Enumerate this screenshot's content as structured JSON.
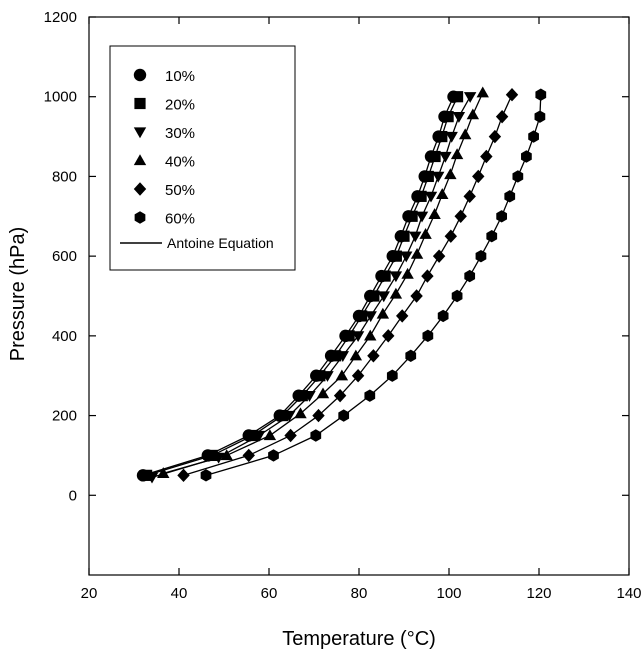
{
  "chart_data": {
    "type": "scatter",
    "title": "",
    "xlabel": "Temperature (°C)",
    "ylabel": "Pressure (hPa)",
    "xlim": [
      20,
      140
    ],
    "ylim": [
      -200,
      1200
    ],
    "xticks": [
      "20",
      "40",
      "60",
      "80",
      "100",
      "120",
      "140"
    ],
    "yticks": [
      "0",
      "200",
      "400",
      "600",
      "800",
      "1000",
      "1200"
    ],
    "grid": false,
    "legend_position": "top-left",
    "legend_line_label": "Antoine Equation",
    "series": [
      {
        "name": "10%",
        "marker": "circle",
        "points": [
          [
            32.0,
            50
          ],
          [
            46.4,
            100
          ],
          [
            55.5,
            150
          ],
          [
            62.4,
            200
          ],
          [
            66.6,
            250
          ],
          [
            70.5,
            300
          ],
          [
            73.8,
            350
          ],
          [
            77.0,
            400
          ],
          [
            80.0,
            450
          ],
          [
            82.5,
            500
          ],
          [
            85.0,
            550
          ],
          [
            87.5,
            600
          ],
          [
            89.3,
            650
          ],
          [
            91.0,
            700
          ],
          [
            93.0,
            750
          ],
          [
            94.6,
            800
          ],
          [
            96.0,
            850
          ],
          [
            97.7,
            900
          ],
          [
            99.0,
            950
          ],
          [
            101.0,
            1000
          ]
        ]
      },
      {
        "name": "20%",
        "marker": "square",
        "points": [
          [
            32.8,
            50
          ],
          [
            47.4,
            100
          ],
          [
            56.4,
            150
          ],
          [
            63.0,
            200
          ],
          [
            67.4,
            250
          ],
          [
            71.3,
            300
          ],
          [
            74.8,
            350
          ],
          [
            77.8,
            400
          ],
          [
            80.6,
            450
          ],
          [
            83.3,
            500
          ],
          [
            85.8,
            550
          ],
          [
            88.3,
            600
          ],
          [
            90.0,
            650
          ],
          [
            91.8,
            700
          ],
          [
            93.8,
            750
          ],
          [
            95.4,
            800
          ],
          [
            96.9,
            850
          ],
          [
            98.4,
            900
          ],
          [
            99.8,
            950
          ],
          [
            101.9,
            1000
          ]
        ]
      },
      {
        "name": "30%",
        "marker": "triangle-down",
        "points": [
          [
            34.0,
            45
          ],
          [
            48.8,
            95
          ],
          [
            57.8,
            150
          ],
          [
            64.5,
            200
          ],
          [
            69.0,
            250
          ],
          [
            73.0,
            300
          ],
          [
            76.4,
            350
          ],
          [
            79.8,
            400
          ],
          [
            82.6,
            450
          ],
          [
            85.5,
            500
          ],
          [
            88.2,
            550
          ],
          [
            90.5,
            600
          ],
          [
            92.5,
            650
          ],
          [
            94.0,
            700
          ],
          [
            96.0,
            750
          ],
          [
            97.6,
            800
          ],
          [
            99.2,
            850
          ],
          [
            100.6,
            900
          ],
          [
            102.2,
            950
          ],
          [
            104.7,
            1000
          ]
        ]
      },
      {
        "name": "40%",
        "marker": "triangle-up",
        "points": [
          [
            36.5,
            55
          ],
          [
            50.6,
            100
          ],
          [
            60.2,
            150
          ],
          [
            67.0,
            205
          ],
          [
            72.0,
            255
          ],
          [
            76.2,
            300
          ],
          [
            79.3,
            350
          ],
          [
            82.5,
            400
          ],
          [
            85.3,
            455
          ],
          [
            88.2,
            505
          ],
          [
            90.8,
            555
          ],
          [
            92.9,
            605
          ],
          [
            94.8,
            655
          ],
          [
            96.8,
            705
          ],
          [
            98.5,
            755
          ],
          [
            100.3,
            805
          ],
          [
            101.8,
            855
          ],
          [
            103.6,
            905
          ],
          [
            105.3,
            955
          ],
          [
            107.5,
            1010
          ]
        ]
      },
      {
        "name": "50%",
        "marker": "diamond",
        "points": [
          [
            41.0,
            50
          ],
          [
            55.5,
            100
          ],
          [
            64.8,
            150
          ],
          [
            71.0,
            200
          ],
          [
            75.8,
            250
          ],
          [
            79.8,
            300
          ],
          [
            83.2,
            350
          ],
          [
            86.5,
            400
          ],
          [
            89.6,
            450
          ],
          [
            92.8,
            500
          ],
          [
            95.2,
            550
          ],
          [
            97.8,
            600
          ],
          [
            100.4,
            650
          ],
          [
            102.6,
            700
          ],
          [
            104.6,
            750
          ],
          [
            106.5,
            800
          ],
          [
            108.3,
            850
          ],
          [
            110.2,
            900
          ],
          [
            111.8,
            950
          ],
          [
            114.0,
            1005
          ]
        ]
      },
      {
        "name": "60%",
        "marker": "hexagon",
        "points": [
          [
            46.0,
            50
          ],
          [
            61.0,
            100
          ],
          [
            70.4,
            150
          ],
          [
            76.6,
            200
          ],
          [
            82.4,
            250
          ],
          [
            87.4,
            300
          ],
          [
            91.5,
            350
          ],
          [
            95.3,
            400
          ],
          [
            98.7,
            450
          ],
          [
            101.8,
            500
          ],
          [
            104.6,
            550
          ],
          [
            107.1,
            600
          ],
          [
            109.5,
            650
          ],
          [
            111.7,
            700
          ],
          [
            113.5,
            750
          ],
          [
            115.3,
            800
          ],
          [
            117.2,
            850
          ],
          [
            118.8,
            900
          ],
          [
            120.2,
            950
          ],
          [
            120.4,
            1005
          ]
        ]
      }
    ]
  }
}
